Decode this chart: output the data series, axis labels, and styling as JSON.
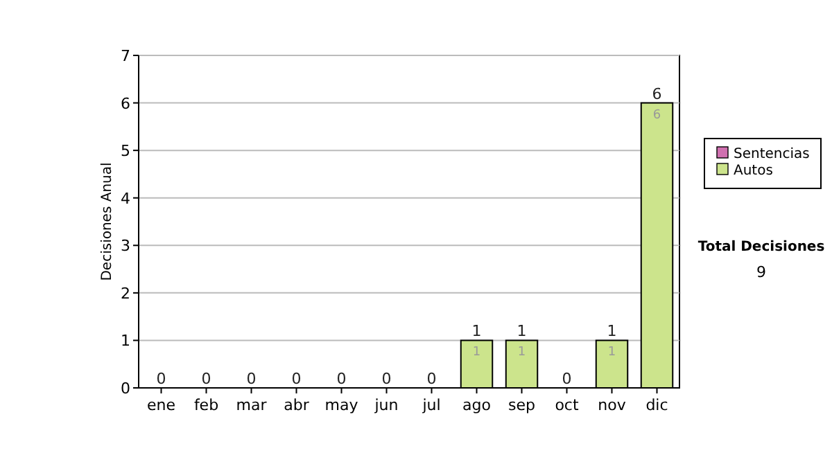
{
  "chart_data": {
    "type": "bar",
    "stacked": true,
    "ylabel": "Decisiones Anual",
    "categories": [
      "ene",
      "feb",
      "mar",
      "abr",
      "may",
      "jun",
      "jul",
      "ago",
      "sep",
      "oct",
      "nov",
      "dic"
    ],
    "series": [
      {
        "name": "Sentencias",
        "color": "#d070b0",
        "values": [
          0,
          0,
          0,
          0,
          0,
          0,
          0,
          0,
          0,
          0,
          0,
          0
        ]
      },
      {
        "name": "Autos",
        "color": "#cce48c",
        "values": [
          0,
          0,
          0,
          0,
          0,
          0,
          0,
          1,
          1,
          0,
          1,
          6
        ],
        "value_labels": [
          null,
          null,
          null,
          null,
          null,
          null,
          null,
          "1",
          "1",
          null,
          "1",
          "6"
        ]
      }
    ],
    "totals": [
      "0",
      "0",
      "0",
      "0",
      "0",
      "0",
      "0",
      "1",
      "1",
      "0",
      "1",
      "6"
    ],
    "ylim": [
      0,
      7
    ],
    "yticks": [
      0,
      1,
      2,
      3,
      4,
      5,
      6,
      7
    ],
    "grid": "y",
    "legend": "right",
    "annotations": [
      "Total Decisiones",
      "9"
    ]
  }
}
